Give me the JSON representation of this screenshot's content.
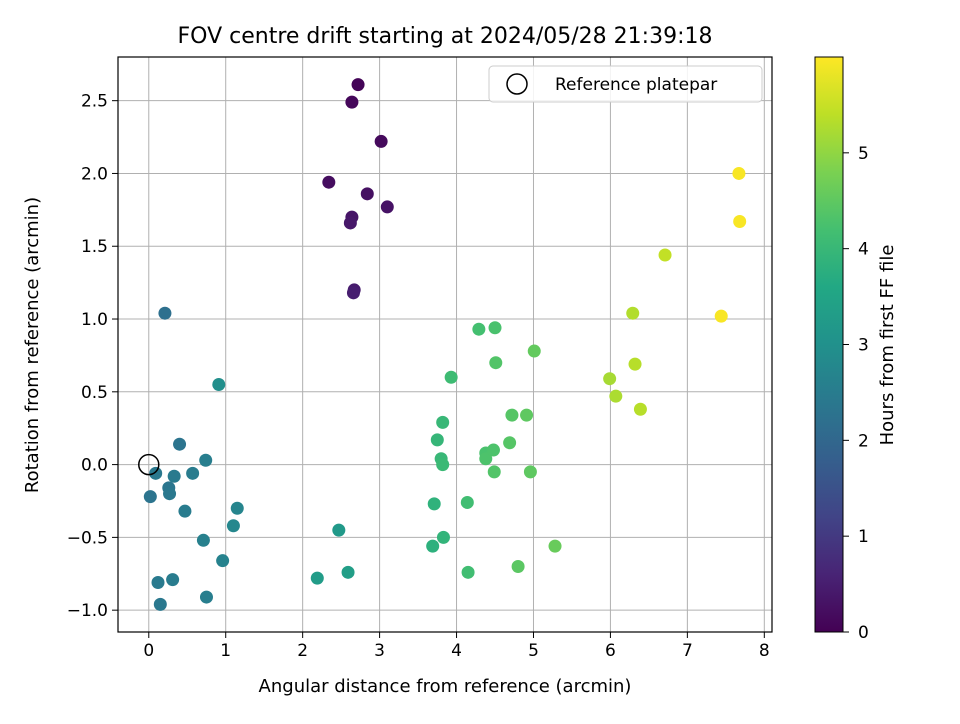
{
  "chart_data": {
    "type": "scatter",
    "title": "FOV centre drift starting at 2024/05/28 21:39:18",
    "xlabel": "Angular distance from reference (arcmin)",
    "ylabel": "Rotation from reference (arcmin)",
    "xlim": [
      -0.4,
      8.1
    ],
    "ylim": [
      -1.15,
      2.8
    ],
    "xticks": [
      0,
      1,
      2,
      3,
      4,
      5,
      6,
      7,
      8
    ],
    "yticks": [
      -1.0,
      -0.5,
      0.0,
      0.5,
      1.0,
      1.5,
      2.0,
      2.5
    ],
    "xtick_labels": [
      "0",
      "1",
      "2",
      "3",
      "4",
      "5",
      "6",
      "7",
      "8"
    ],
    "ytick_labels": [
      "−1.0",
      "−0.5",
      "0.0",
      "0.5",
      "1.0",
      "1.5",
      "2.0",
      "2.5"
    ],
    "grid": true,
    "legend": {
      "position": "top-right",
      "entries": [
        "Reference platepar"
      ]
    },
    "reference_marker": {
      "x": 0,
      "y": 0,
      "label": "Reference platepar"
    },
    "colorbar": {
      "label": "Hours from first FF file",
      "colormap": "viridis",
      "range": [
        0,
        6.0
      ],
      "ticks": [
        0,
        1,
        2,
        3,
        4,
        5
      ],
      "tick_labels": [
        "0",
        "1",
        "2",
        "3",
        "4",
        "5"
      ]
    },
    "points": [
      {
        "x": 2.72,
        "y": 2.61,
        "h": 0.05
      },
      {
        "x": 2.64,
        "y": 2.49,
        "h": 0.1
      },
      {
        "x": 3.02,
        "y": 2.22,
        "h": 0.15
      },
      {
        "x": 2.34,
        "y": 1.94,
        "h": 0.2
      },
      {
        "x": 2.84,
        "y": 1.86,
        "h": 0.25
      },
      {
        "x": 3.1,
        "y": 1.77,
        "h": 0.3
      },
      {
        "x": 2.64,
        "y": 1.7,
        "h": 0.35
      },
      {
        "x": 2.62,
        "y": 1.66,
        "h": 0.4
      },
      {
        "x": 2.67,
        "y": 1.2,
        "h": 0.45
      },
      {
        "x": 2.66,
        "y": 1.18,
        "h": 0.5
      },
      {
        "x": 0.21,
        "y": 1.04,
        "h": 2.2
      },
      {
        "x": 0.4,
        "y": 0.14,
        "h": 2.3
      },
      {
        "x": 0.09,
        "y": -0.06,
        "h": 2.4
      },
      {
        "x": 0.33,
        "y": -0.08,
        "h": 2.45
      },
      {
        "x": 0.57,
        "y": -0.06,
        "h": 2.5
      },
      {
        "x": 0.74,
        "y": 0.03,
        "h": 2.55
      },
      {
        "x": 0.26,
        "y": -0.16,
        "h": 2.35
      },
      {
        "x": 0.27,
        "y": -0.2,
        "h": 2.4
      },
      {
        "x": 0.02,
        "y": -0.22,
        "h": 2.3
      },
      {
        "x": 0.47,
        "y": -0.32,
        "h": 2.5
      },
      {
        "x": 0.71,
        "y": -0.52,
        "h": 2.6
      },
      {
        "x": 1.15,
        "y": -0.3,
        "h": 2.7
      },
      {
        "x": 1.1,
        "y": -0.42,
        "h": 2.75
      },
      {
        "x": 0.96,
        "y": -0.66,
        "h": 2.65
      },
      {
        "x": 0.12,
        "y": -0.81,
        "h": 2.45
      },
      {
        "x": 0.31,
        "y": -0.79,
        "h": 2.5
      },
      {
        "x": 0.75,
        "y": -0.91,
        "h": 2.55
      },
      {
        "x": 0.15,
        "y": -0.96,
        "h": 2.4
      },
      {
        "x": 0.91,
        "y": 0.55,
        "h": 2.95
      },
      {
        "x": 2.47,
        "y": -0.45,
        "h": 3.2
      },
      {
        "x": 2.19,
        "y": -0.78,
        "h": 3.3
      },
      {
        "x": 2.59,
        "y": -0.74,
        "h": 3.35
      },
      {
        "x": 3.69,
        "y": -0.56,
        "h": 3.8
      },
      {
        "x": 3.71,
        "y": -0.27,
        "h": 3.85
      },
      {
        "x": 3.83,
        "y": -0.5,
        "h": 3.9
      },
      {
        "x": 3.75,
        "y": 0.17,
        "h": 3.95
      },
      {
        "x": 3.82,
        "y": 0.29,
        "h": 4.0
      },
      {
        "x": 3.8,
        "y": 0.04,
        "h": 4.0
      },
      {
        "x": 3.82,
        "y": 0.0,
        "h": 4.05
      },
      {
        "x": 3.93,
        "y": 0.6,
        "h": 4.1
      },
      {
        "x": 4.14,
        "y": -0.26,
        "h": 4.15
      },
      {
        "x": 4.15,
        "y": -0.74,
        "h": 4.15
      },
      {
        "x": 4.29,
        "y": 0.93,
        "h": 4.2
      },
      {
        "x": 4.5,
        "y": 0.94,
        "h": 4.25
      },
      {
        "x": 4.38,
        "y": 0.08,
        "h": 4.25
      },
      {
        "x": 4.38,
        "y": 0.04,
        "h": 4.3
      },
      {
        "x": 4.48,
        "y": 0.1,
        "h": 4.3
      },
      {
        "x": 4.49,
        "y": -0.05,
        "h": 4.35
      },
      {
        "x": 4.51,
        "y": 0.7,
        "h": 4.35
      },
      {
        "x": 4.69,
        "y": 0.15,
        "h": 4.4
      },
      {
        "x": 4.72,
        "y": 0.34,
        "h": 4.4
      },
      {
        "x": 4.8,
        "y": -0.7,
        "h": 4.45
      },
      {
        "x": 4.91,
        "y": 0.34,
        "h": 4.5
      },
      {
        "x": 4.96,
        "y": -0.05,
        "h": 4.5
      },
      {
        "x": 5.01,
        "y": 0.78,
        "h": 4.55
      },
      {
        "x": 5.28,
        "y": -0.56,
        "h": 4.6
      },
      {
        "x": 5.99,
        "y": 0.59,
        "h": 5.2
      },
      {
        "x": 6.07,
        "y": 0.47,
        "h": 5.25
      },
      {
        "x": 6.29,
        "y": 1.04,
        "h": 5.3
      },
      {
        "x": 6.32,
        "y": 0.69,
        "h": 5.35
      },
      {
        "x": 6.39,
        "y": 0.38,
        "h": 5.35
      },
      {
        "x": 6.71,
        "y": 1.44,
        "h": 5.45
      },
      {
        "x": 7.44,
        "y": 1.02,
        "h": 5.95
      },
      {
        "x": 7.67,
        "y": 2.0,
        "h": 5.95
      },
      {
        "x": 7.68,
        "y": 1.67,
        "h": 5.95
      }
    ]
  }
}
